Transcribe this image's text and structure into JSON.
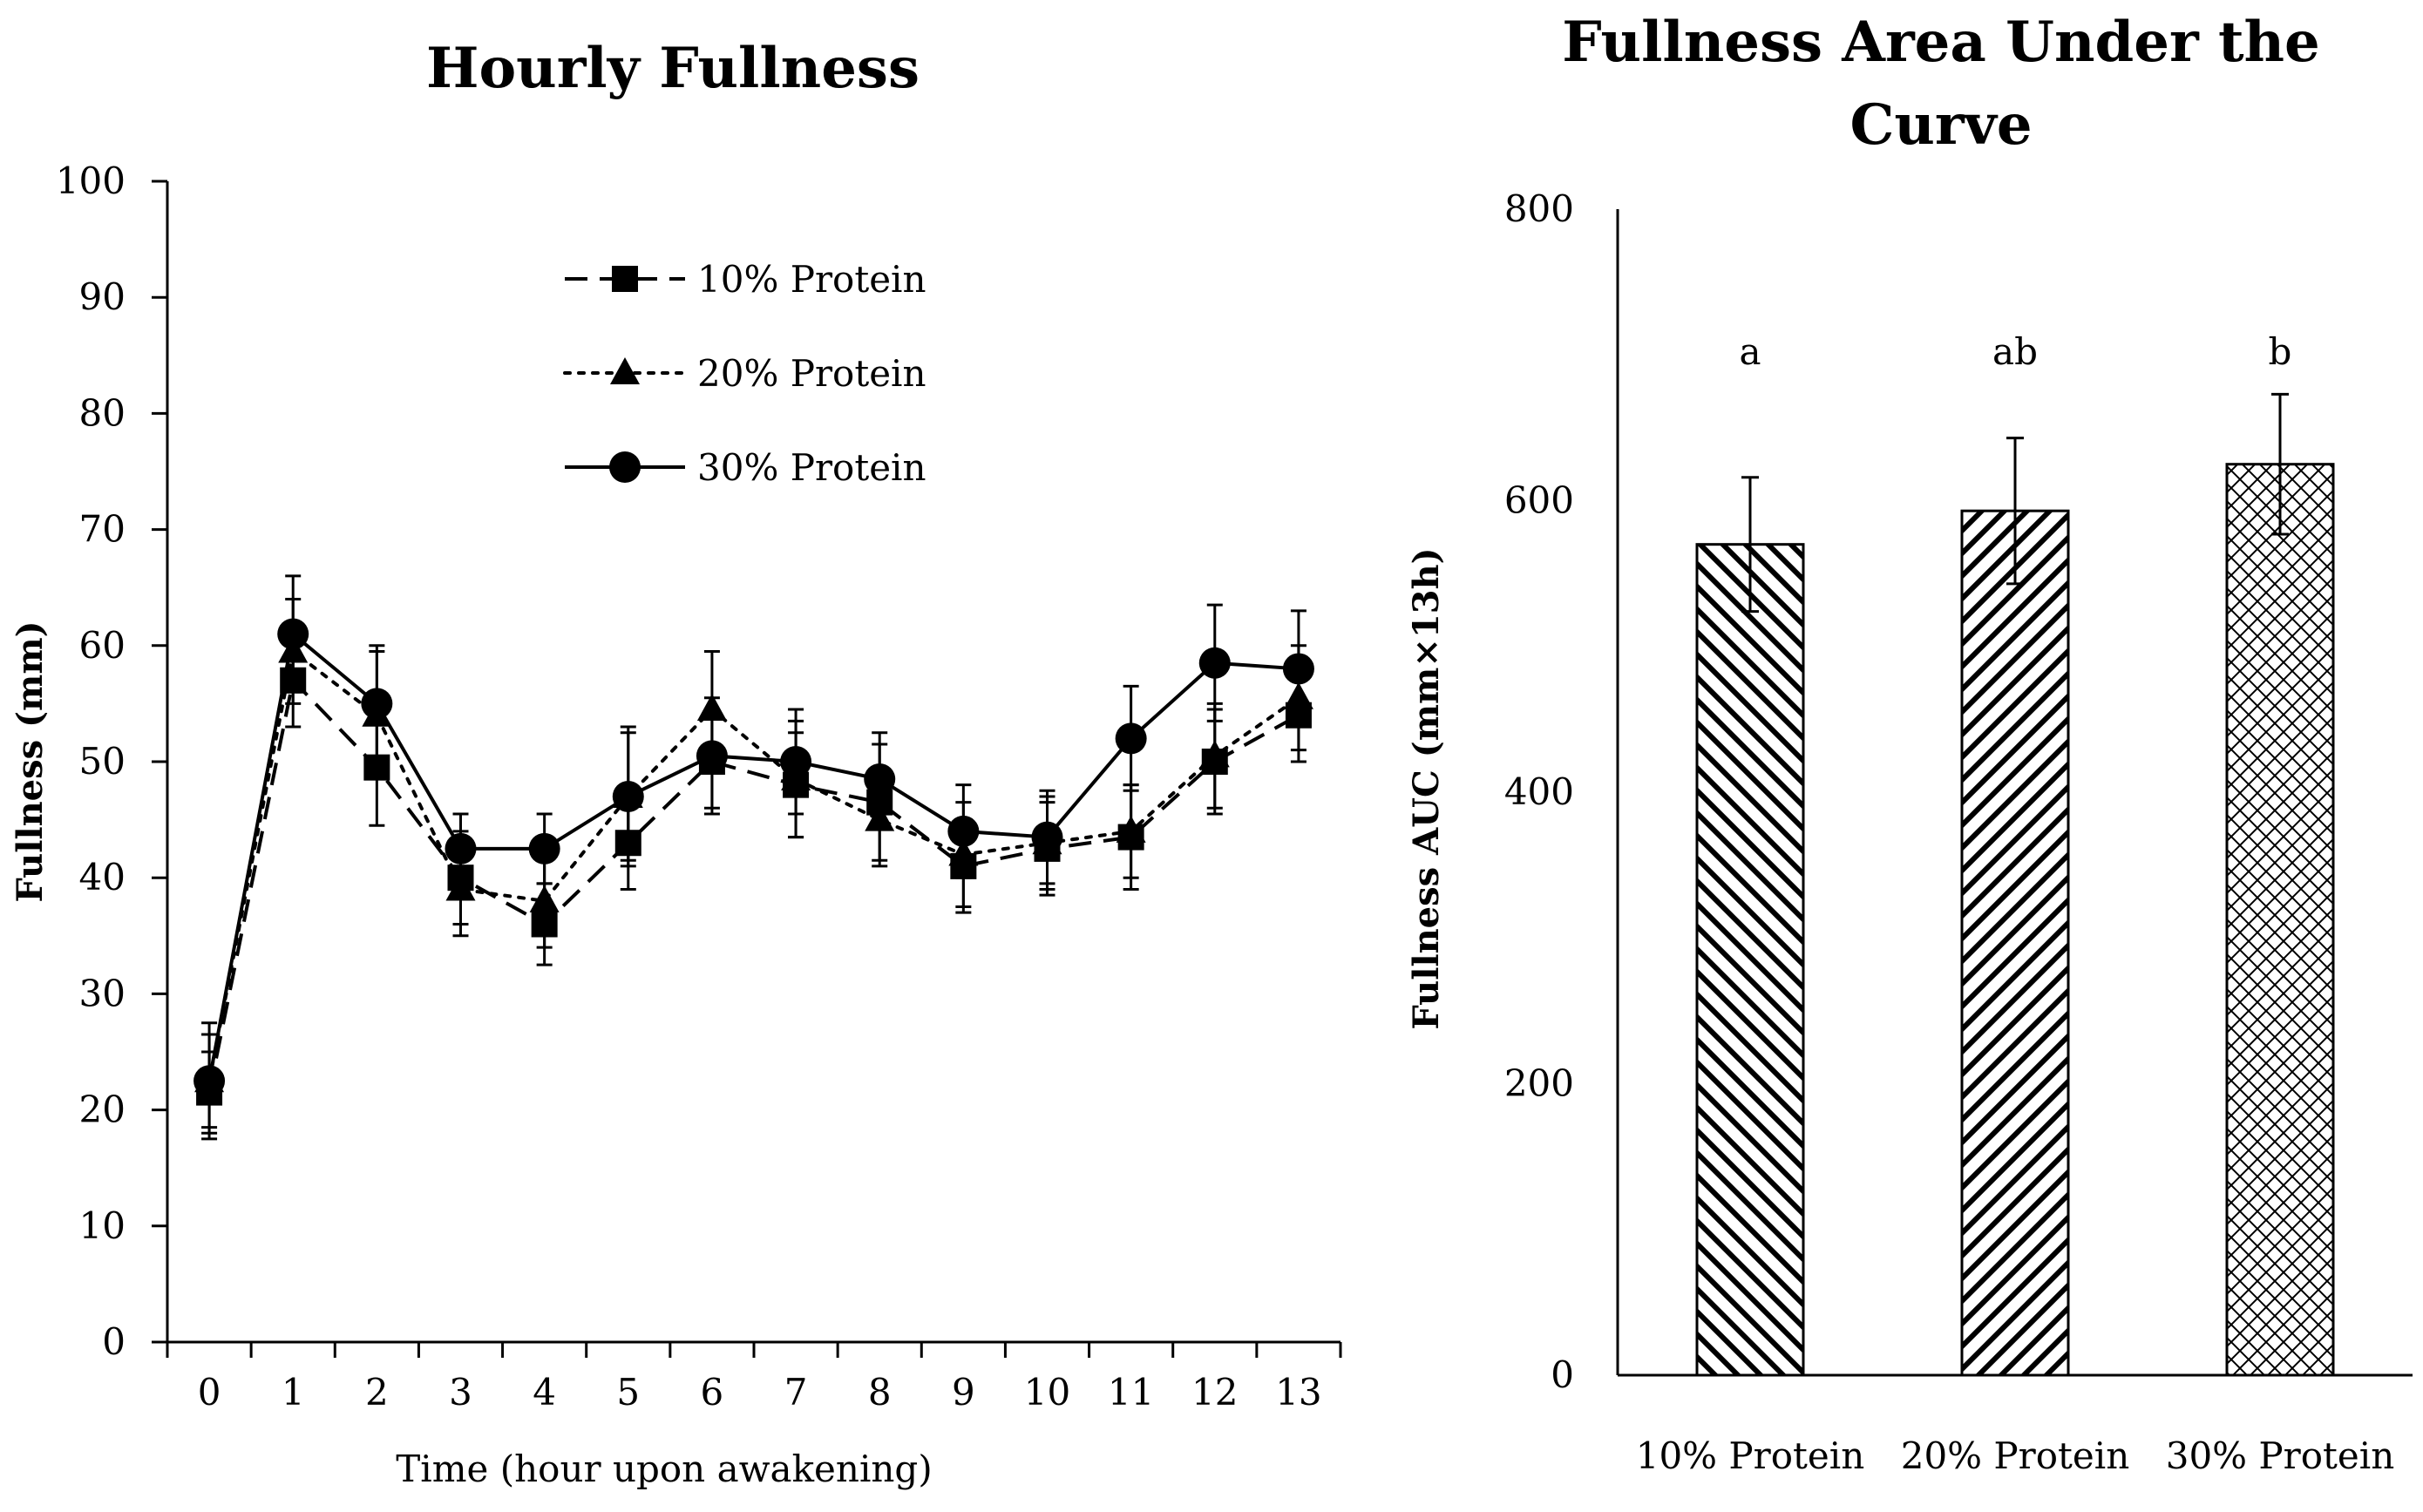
{
  "chart_data": [
    {
      "type": "line",
      "title": "Hourly Fullness",
      "xlabel": "Time (hour upon awakening)",
      "ylabel": "Fullness (mm)",
      "x": [
        0,
        1,
        2,
        3,
        4,
        5,
        6,
        7,
        8,
        9,
        10,
        11,
        12,
        13
      ],
      "x_tick_labels": [
        "0",
        "1",
        "2",
        "3",
        "4",
        "5",
        "6",
        "7",
        "8",
        "9",
        "10",
        "11",
        "12",
        "13"
      ],
      "y_tick_labels": [
        "0",
        "10",
        "20",
        "30",
        "40",
        "50",
        "60",
        "70",
        "80",
        "90",
        "100"
      ],
      "ylim": [
        0,
        100
      ],
      "grid": false,
      "legend_position": "top-center",
      "series": [
        {
          "name": "10% Protein",
          "line_style": "dashed",
          "marker": "square",
          "values": [
            21.5,
            57,
            49.5,
            40,
            36,
            43,
            50,
            48,
            46.5,
            41,
            42.5,
            43.5,
            50,
            54
          ],
          "errors": [
            3.5,
            4,
            5,
            4,
            3.5,
            4,
            4,
            4.5,
            5,
            4,
            4,
            4.5,
            4.5,
            4
          ]
        },
        {
          "name": "20% Protein",
          "line_style": "dotted",
          "marker": "triangle",
          "values": [
            22.5,
            59.5,
            54,
            39,
            38,
            47,
            54.5,
            48.5,
            45,
            42,
            43,
            44,
            50.5,
            55.5
          ],
          "errors": [
            4,
            4.5,
            5.5,
            4,
            4,
            5.5,
            5,
            5,
            4,
            4.5,
            4,
            4,
            4.5,
            4.5
          ]
        },
        {
          "name": "30% Protein",
          "line_style": "solid",
          "marker": "circle",
          "values": [
            22.5,
            61,
            55,
            42.5,
            42.5,
            47,
            50.5,
            50,
            48.5,
            44,
            43.5,
            52,
            58.5,
            58
          ],
          "errors": [
            5,
            5,
            5,
            3,
            3,
            6,
            5,
            4.5,
            4,
            4,
            4,
            4.5,
            5,
            5
          ]
        }
      ]
    },
    {
      "type": "bar",
      "title": "Fullness Area Under the Curve",
      "title_lines": [
        "Fullness Area Under the",
        "Curve"
      ],
      "xlabel": "",
      "ylabel": "Fullness AUC (mm×13h)",
      "categories": [
        "10% Protein",
        "20% Protein",
        "30% Protein"
      ],
      "values": [
        570,
        593,
        625
      ],
      "errors": [
        46,
        50,
        48
      ],
      "significance_labels": [
        "a",
        "ab",
        "b"
      ],
      "y_tick_labels": [
        "0",
        "200",
        "400",
        "600",
        "800"
      ],
      "ylim": [
        0,
        800
      ],
      "grid": false
    }
  ]
}
